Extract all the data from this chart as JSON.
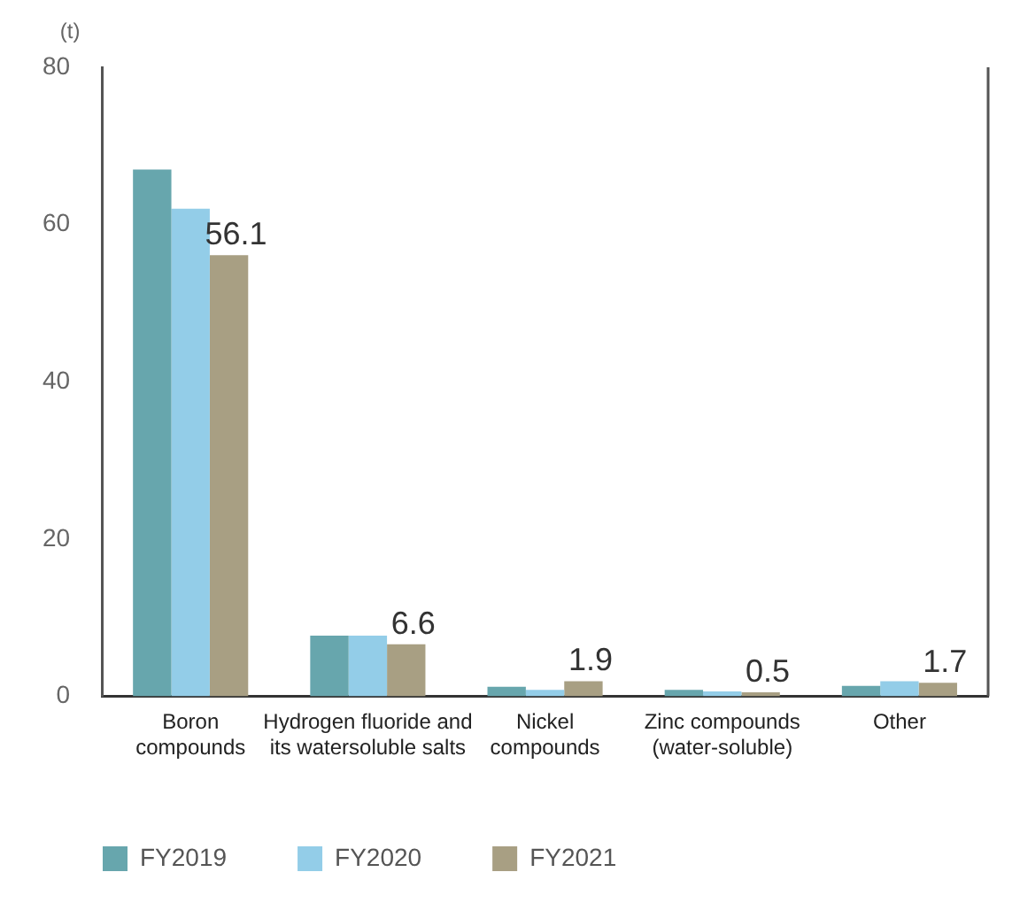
{
  "chart_data": {
    "type": "bar",
    "ylabel": "(t)",
    "categories": [
      "Boron compounds",
      "Hydrogen fluoride and its watersoluble salts",
      "Nickel compounds",
      "Zinc compounds (water-soluble)",
      "Other"
    ],
    "series": [
      {
        "name": "FY2019",
        "color": "#67a6ad",
        "values": [
          67,
          7.7,
          1.2,
          0.8,
          1.3
        ]
      },
      {
        "name": "FY2020",
        "color": "#93cde8",
        "values": [
          62,
          7.7,
          0.8,
          0.6,
          1.9
        ]
      },
      {
        "name": "FY2021",
        "color": "#a89f83",
        "values": [
          56.1,
          6.6,
          1.9,
          0.5,
          1.7
        ],
        "value_labels": [
          "56.1",
          "6.6",
          "1.9",
          "0.5",
          "1.7"
        ]
      }
    ],
    "ylim": [
      0,
      80
    ],
    "yticks": [
      0,
      20,
      40,
      60,
      80
    ],
    "grid": false,
    "legend": "bottom left"
  }
}
